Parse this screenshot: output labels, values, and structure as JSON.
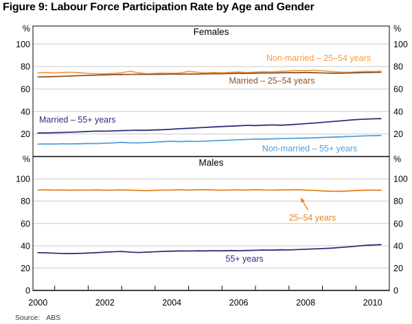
{
  "title": "Figure 9: Labour Force Participation Rate by Age and Gender",
  "source": {
    "label": "Source:",
    "value": "ABS"
  },
  "chart_data": {
    "type": "line",
    "x_unit": "year",
    "xlim": [
      1999.85,
      2010.5
    ],
    "x_tick_labels": [
      "2000",
      "2002",
      "2004",
      "2006",
      "2008",
      "2010"
    ],
    "x_tick_label_years": [
      2000,
      2002,
      2004,
      2006,
      2008,
      2010
    ],
    "x_minor_ticks": [
      2000.5,
      2001.5,
      2002.5,
      2003.5,
      2004.5,
      2005.5,
      2006.5,
      2007.5,
      2008.5,
      2009.5
    ],
    "grid": "horizontal",
    "gridline_color": "#c9c9c9",
    "axis_color": "#000000",
    "panels": [
      {
        "title": "Females",
        "unit": "%",
        "ylim": [
          0,
          116
        ],
        "y_ticks": [
          20,
          40,
          60,
          80,
          100
        ],
        "series": [
          {
            "name": "Non-married – 25–54 years",
            "color": "#F59C40",
            "x_start": 2000.0,
            "x_step": 0.25,
            "values": [
              74.4,
              74.6,
              74.3,
              74.7,
              74.9,
              74.5,
              73.9,
              73.6,
              73.5,
              73.8,
              74.4,
              75.8,
              74.4,
              73.6,
              73.9,
              74.2,
              73.9,
              74.3,
              75.7,
              74.9,
              74.3,
              74.7,
              74.4,
              74.8,
              75.1,
              74.6,
              75.0,
              75.4,
              75.2,
              75.6,
              76.1,
              76.5,
              76.3,
              76.7,
              76.2,
              75.6,
              75.1,
              74.8,
              75.2,
              75.7,
              75.5,
              75.8
            ]
          },
          {
            "name": "Married – 25–54 years",
            "color": "#8C5130",
            "x_start": 2000.0,
            "x_step": 0.25,
            "values": [
              70.7,
              70.9,
              71.1,
              71.3,
              71.6,
              71.9,
              72.1,
              72.4,
              72.6,
              72.8,
              72.9,
              73.0,
              73.1,
              73.0,
              73.2,
              73.1,
              73.3,
              73.2,
              73.4,
              73.3,
              73.5,
              73.7,
              73.6,
              73.8,
              74.0,
              73.9,
              74.1,
              74.3,
              74.2,
              74.4,
              74.6,
              74.5,
              74.7,
              74.5,
              74.3,
              74.1,
              74.0,
              74.2,
              74.4,
              74.6,
              74.8,
              74.9
            ]
          },
          {
            "name": "Married – 55+ years",
            "color": "#2A2F7D",
            "x_start": 2000.0,
            "x_step": 0.25,
            "values": [
              20.9,
              21.0,
              21.2,
              21.4,
              21.6,
              21.9,
              22.3,
              22.6,
              22.5,
              22.8,
              23.0,
              23.2,
              23.4,
              23.3,
              23.6,
              23.9,
              24.3,
              24.7,
              25.1,
              25.5,
              25.9,
              26.3,
              26.7,
              27.0,
              27.3,
              27.7,
              27.5,
              27.8,
              28.1,
              27.8,
              28.2,
              28.7,
              29.2,
              29.8,
              30.4,
              31.0,
              31.6,
              32.2,
              32.8,
              33.2,
              33.5,
              33.7
            ]
          },
          {
            "name": "Non-married – 55+ years",
            "color": "#4FA0DB",
            "x_start": 2000.0,
            "x_step": 0.25,
            "values": [
              11.0,
              11.2,
              11.1,
              11.3,
              11.2,
              11.4,
              11.6,
              11.5,
              11.8,
              12.1,
              12.6,
              12.2,
              12.1,
              12.4,
              12.8,
              13.3,
              13.6,
              13.3,
              13.6,
              13.4,
              13.7,
              14.0,
              14.3,
              14.6,
              14.9,
              15.2,
              15.5,
              15.4,
              15.7,
              15.9,
              16.1,
              16.4,
              16.3,
              16.6,
              16.9,
              17.2,
              17.5,
              17.8,
              18.0,
              18.3,
              18.5,
              18.7
            ]
          }
        ]
      },
      {
        "title": "Males",
        "unit": "%",
        "ylim": [
          0,
          120
        ],
        "y_ticks": [
          0,
          20,
          40,
          60,
          80,
          100
        ],
        "annotations": [
          {
            "type": "arrow",
            "points_to_series": "25–54 years"
          }
        ],
        "series": [
          {
            "name": "25–54 years",
            "color": "#E5821F",
            "x_start": 2000.0,
            "x_step": 0.25,
            "values": [
              90.0,
              90.1,
              89.9,
              90.0,
              89.8,
              90.0,
              89.9,
              90.1,
              89.8,
              89.9,
              90.1,
              89.9,
              89.6,
              89.4,
              89.7,
              89.9,
              90.0,
              90.2,
              89.9,
              90.1,
              90.3,
              90.0,
              89.8,
              90.0,
              90.1,
              89.9,
              90.2,
              90.0,
              89.9,
              90.1,
              90.0,
              90.2,
              89.9,
              89.6,
              89.2,
              88.9,
              88.8,
              89.1,
              89.5,
              89.8,
              89.9,
              89.8
            ]
          },
          {
            "name": "55+ years",
            "color": "#2A2F7D",
            "x_start": 2000.0,
            "x_step": 0.25,
            "values": [
              33.8,
              33.7,
              33.4,
              33.1,
              33.0,
              33.2,
              33.5,
              33.9,
              34.3,
              34.7,
              34.9,
              34.4,
              34.0,
              34.3,
              34.7,
              35.0,
              35.2,
              35.4,
              35.3,
              35.5,
              35.4,
              35.6,
              35.5,
              35.7,
              35.6,
              35.8,
              36.0,
              36.2,
              36.1,
              36.4,
              36.3,
              36.6,
              36.9,
              37.2,
              37.5,
              37.9,
              38.4,
              39.0,
              39.6,
              40.3,
              40.7,
              41.0
            ]
          }
        ]
      }
    ]
  }
}
